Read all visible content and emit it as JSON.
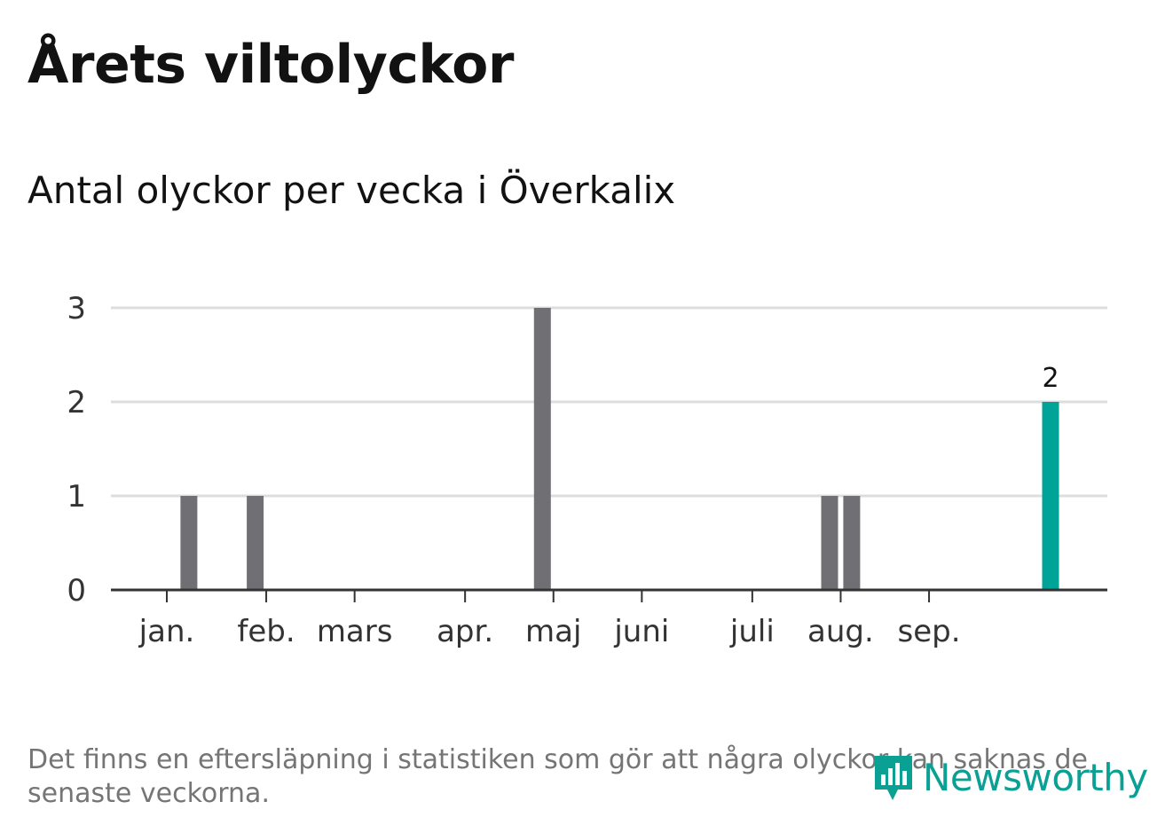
{
  "header": {
    "title": "Årets viltolyckor",
    "subtitle": "Antal olyckor per vecka i Överkalix"
  },
  "footer": {
    "note": "Det finns en eftersläpning i statistiken som gör att några olyckor kan saknas de senaste veckorna.",
    "brand": "Newsworthy",
    "brand_icon": "bar-chart-speech-bubble-icon"
  },
  "colors": {
    "bar": "#706f74",
    "highlight": "#00a398",
    "grid": "#dddddd",
    "axis": "#333333",
    "brand": "#0aa194"
  },
  "chart_data": {
    "type": "bar",
    "title": "Antal olyckor per vecka i Överkalix",
    "xlabel": "",
    "ylabel": "",
    "ylim": [
      0,
      3
    ],
    "yticks": [
      0,
      1,
      2,
      3
    ],
    "grid": true,
    "weeks": [
      1,
      2,
      3,
      4,
      5,
      6,
      7,
      8,
      9,
      10,
      11,
      12,
      13,
      14,
      15,
      16,
      17,
      18,
      19,
      20,
      21,
      22,
      23,
      24,
      25,
      26,
      27,
      28,
      29,
      30,
      31,
      32,
      33,
      34,
      35,
      36,
      37,
      38,
      39,
      40,
      41
    ],
    "values": [
      0,
      1,
      0,
      0,
      1,
      0,
      0,
      0,
      0,
      0,
      0,
      0,
      0,
      0,
      0,
      0,
      0,
      3,
      0,
      0,
      0,
      0,
      0,
      0,
      0,
      0,
      0,
      0,
      0,
      0,
      1,
      1,
      0,
      0,
      0,
      0,
      0,
      0,
      0,
      0,
      2
    ],
    "highlight_index": 40,
    "highlight_label": "2",
    "month_ticks": [
      {
        "label": "jan.",
        "week": 1
      },
      {
        "label": "feb.",
        "week": 5.5
      },
      {
        "label": "mars",
        "week": 9.5
      },
      {
        "label": "apr.",
        "week": 14.5
      },
      {
        "label": "maj",
        "week": 18.5
      },
      {
        "label": "juni",
        "week": 22.5
      },
      {
        "label": "juli",
        "week": 27.5
      },
      {
        "label": "aug.",
        "week": 31.5
      },
      {
        "label": "sep.",
        "week": 35.5
      }
    ]
  }
}
